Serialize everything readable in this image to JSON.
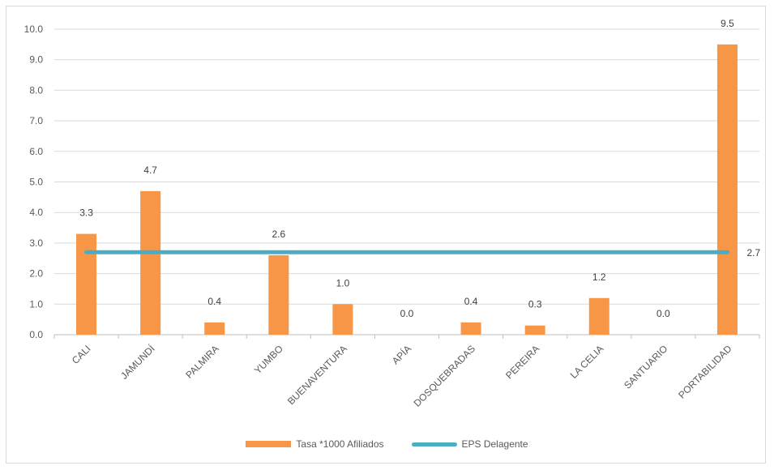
{
  "chart_data": {
    "type": "bar",
    "categories": [
      "CALI",
      "JAMUNDÍ",
      "PALMIRA",
      "YUMBO",
      "BUENAVENTURA",
      "APÍA",
      "DOSQUEBRADAS",
      "PEREIRA",
      "LA CELIA",
      "SANTUARIO",
      "PORTABILIDAD"
    ],
    "series": [
      {
        "name": "Tasa *1000 Afiliados",
        "type": "bar",
        "color": "#f79646",
        "values": [
          3.3,
          4.7,
          0.4,
          2.6,
          1.0,
          0.0,
          0.4,
          0.3,
          1.2,
          0.0,
          9.5
        ],
        "labels": [
          "3.3",
          "4.7",
          "0.4",
          "2.6",
          "1.0",
          "0.0",
          "0.4",
          "0.3",
          "1.2",
          "0.0",
          "9.5"
        ]
      },
      {
        "name": "EPS Delagente",
        "type": "line",
        "color": "#4bacc6",
        "value": 2.7,
        "label": "2.7"
      }
    ],
    "yticks": [
      "0.0",
      "1.0",
      "2.0",
      "3.0",
      "4.0",
      "5.0",
      "6.0",
      "7.0",
      "8.0",
      "9.0",
      "10.0"
    ],
    "ylim": [
      0,
      10
    ],
    "grid": true,
    "legend_position": "bottom"
  }
}
